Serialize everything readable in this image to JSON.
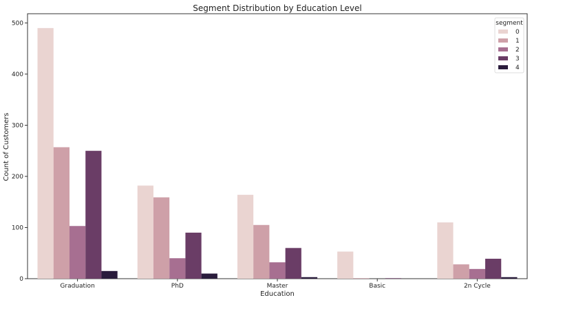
{
  "chart_data": {
    "type": "bar",
    "title": "Segment Distribution by Education Level",
    "xlabel": "Education",
    "ylabel": "Count of Customers",
    "categories": [
      "Graduation",
      "PhD",
      "Master",
      "Basic",
      "2n Cycle"
    ],
    "ylim": [
      0,
      518
    ],
    "yticks": [
      0,
      100,
      200,
      300,
      400,
      500
    ],
    "grid": false,
    "legend": {
      "title": "segment",
      "placement": "top-right"
    },
    "series": [
      {
        "name": "0",
        "color": "#ead4d1",
        "values": [
          490,
          182,
          164,
          53,
          110
        ]
      },
      {
        "name": "1",
        "color": "#cea0a8",
        "values": [
          257,
          159,
          105,
          1,
          28
        ]
      },
      {
        "name": "2",
        "color": "#a76f91",
        "values": [
          103,
          40,
          32,
          0,
          19
        ]
      },
      {
        "name": "3",
        "color": "#6a3d66",
        "values": [
          250,
          90,
          60,
          1,
          39
        ]
      },
      {
        "name": "4",
        "color": "#2a1c3c",
        "values": [
          15,
          10,
          3,
          0,
          3
        ]
      }
    ]
  }
}
